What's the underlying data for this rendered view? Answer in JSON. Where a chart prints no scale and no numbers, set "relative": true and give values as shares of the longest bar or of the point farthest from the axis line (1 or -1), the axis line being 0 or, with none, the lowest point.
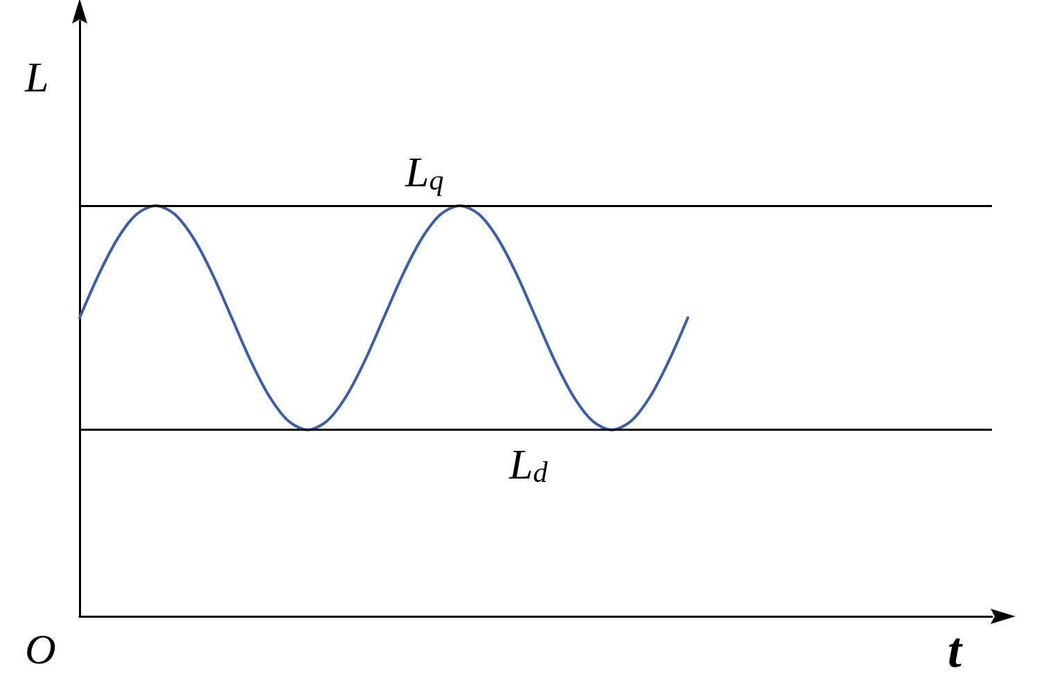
{
  "chart_data": {
    "type": "line",
    "relative": true,
    "xlabel": "t",
    "ylabel": "L",
    "annotations": [
      "O"
    ],
    "categories": [
      null,
      null,
      null,
      null,
      null,
      null,
      null,
      null,
      null,
      null,
      null,
      null,
      null,
      null,
      null,
      null,
      null,
      null,
      null,
      null,
      null,
      null,
      null,
      null,
      null,
      null,
      null,
      null,
      null,
      null,
      null,
      null,
      null,
      null,
      null,
      null,
      null,
      null,
      null,
      null,
      null,
      null,
      null,
      null,
      null,
      null,
      null,
      null,
      null
    ],
    "series": [
      {
        "color": "#3c5ea8",
        "values": [
          0.727,
          0.832,
          0.92,
          0.979,
          1,
          0.979,
          0.92,
          0.832,
          0.727,
          0.622,
          0.534,
          0.475,
          0.454,
          0.475,
          0.534,
          0.622,
          0.727,
          0.832,
          0.92,
          0.979,
          1,
          0.979,
          0.92,
          0.832,
          0.727,
          0.622,
          0.534,
          0.475,
          0.454,
          0.475,
          0.534,
          0.622,
          0.727,
          null,
          null,
          null,
          null,
          null,
          null,
          null,
          null,
          null,
          null,
          null,
          null,
          null,
          null,
          null,
          null
        ]
      }
    ],
    "ref_lines": [
      {
        "axis": "y",
        "value": 1,
        "label": "L$_{q}$",
        "color": "#000000"
      },
      {
        "axis": "y",
        "value": 0.454,
        "label": "L$_{d}$",
        "color": "#000000"
      }
    ]
  }
}
